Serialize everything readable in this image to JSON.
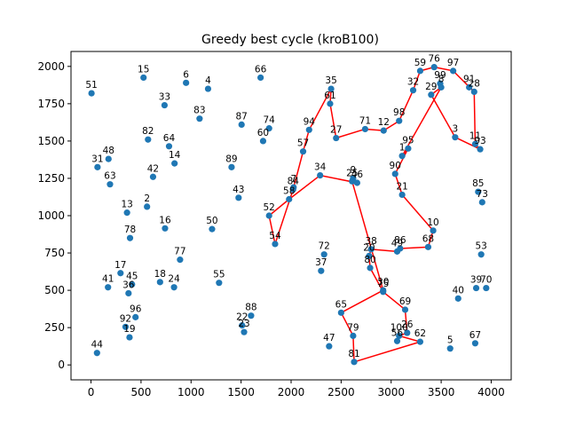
{
  "chart_data": {
    "type": "scatter",
    "title": "Greedy best cycle (kroB100)",
    "xlabel": "",
    "ylabel": "",
    "xlim": [
      -200,
      4200
    ],
    "ylim": [
      -100,
      2100
    ],
    "xticks": [
      0,
      500,
      1000,
      1500,
      2000,
      2500,
      3000,
      3500,
      4000
    ],
    "yticks": [
      0,
      250,
      500,
      750,
      1000,
      1250,
      1500,
      1750,
      2000
    ],
    "point_color": "#1f77b4",
    "cycle_color": "#ff0000",
    "grid": false,
    "points": [
      {
        "label": "51",
        "x": 5,
        "y": 1820
      },
      {
        "label": "15",
        "x": 525,
        "y": 1925
      },
      {
        "label": "6",
        "x": 950,
        "y": 1890
      },
      {
        "label": "4",
        "x": 1170,
        "y": 1850
      },
      {
        "label": "66",
        "x": 1695,
        "y": 1925
      },
      {
        "label": "33",
        "x": 735,
        "y": 1740
      },
      {
        "label": "83",
        "x": 1085,
        "y": 1650
      },
      {
        "label": "82",
        "x": 570,
        "y": 1510
      },
      {
        "label": "64",
        "x": 780,
        "y": 1465
      },
      {
        "label": "87",
        "x": 1505,
        "y": 1610
      },
      {
        "label": "60",
        "x": 1720,
        "y": 1500
      },
      {
        "label": "74",
        "x": 1780,
        "y": 1585
      },
      {
        "label": "48",
        "x": 175,
        "y": 1380
      },
      {
        "label": "31",
        "x": 65,
        "y": 1325
      },
      {
        "label": "14",
        "x": 835,
        "y": 1350
      },
      {
        "label": "42",
        "x": 620,
        "y": 1260
      },
      {
        "label": "89",
        "x": 1405,
        "y": 1325
      },
      {
        "label": "63",
        "x": 190,
        "y": 1210
      },
      {
        "label": "43",
        "x": 1475,
        "y": 1120
      },
      {
        "label": "13",
        "x": 360,
        "y": 1020
      },
      {
        "label": "2",
        "x": 560,
        "y": 1060
      },
      {
        "label": "16",
        "x": 740,
        "y": 915
      },
      {
        "label": "50",
        "x": 1210,
        "y": 910
      },
      {
        "label": "78",
        "x": 390,
        "y": 850
      },
      {
        "label": "77",
        "x": 890,
        "y": 705
      },
      {
        "label": "17",
        "x": 295,
        "y": 615
      },
      {
        "label": "41",
        "x": 170,
        "y": 520
      },
      {
        "label": "45",
        "x": 410,
        "y": 540
      },
      {
        "label": "36",
        "x": 375,
        "y": 480
      },
      {
        "label": "18",
        "x": 690,
        "y": 555
      },
      {
        "label": "24",
        "x": 830,
        "y": 520
      },
      {
        "label": "55",
        "x": 1280,
        "y": 550
      },
      {
        "label": "96",
        "x": 445,
        "y": 320
      },
      {
        "label": "92",
        "x": 345,
        "y": 255
      },
      {
        "label": "19",
        "x": 385,
        "y": 185
      },
      {
        "label": "44",
        "x": 60,
        "y": 80
      },
      {
        "label": "88",
        "x": 1600,
        "y": 330
      },
      {
        "label": "22",
        "x": 1510,
        "y": 265
      },
      {
        "label": "23",
        "x": 1530,
        "y": 220
      },
      {
        "label": "35",
        "x": 2400,
        "y": 1850
      },
      {
        "label": "61",
        "x": 2390,
        "y": 1750
      },
      {
        "label": "94",
        "x": 2180,
        "y": 1575
      },
      {
        "label": "27",
        "x": 2450,
        "y": 1520
      },
      {
        "label": "57",
        "x": 2120,
        "y": 1430
      },
      {
        "label": "71",
        "x": 2740,
        "y": 1580
      },
      {
        "label": "12",
        "x": 2925,
        "y": 1570
      },
      {
        "label": "98",
        "x": 3080,
        "y": 1635
      },
      {
        "label": "59",
        "x": 3290,
        "y": 1970
      },
      {
        "label": "76",
        "x": 3430,
        "y": 1995
      },
      {
        "label": "97",
        "x": 3620,
        "y": 1970
      },
      {
        "label": "32",
        "x": 3220,
        "y": 1840
      },
      {
        "label": "29",
        "x": 3400,
        "y": 1810
      },
      {
        "label": "99",
        "x": 3490,
        "y": 1885
      },
      {
        "label": "8",
        "x": 3500,
        "y": 1860
      },
      {
        "label": "91",
        "x": 3780,
        "y": 1860
      },
      {
        "label": "28",
        "x": 3830,
        "y": 1830
      },
      {
        "label": "3",
        "x": 3640,
        "y": 1525
      },
      {
        "label": "11",
        "x": 3840,
        "y": 1480
      },
      {
        "label": "93",
        "x": 3890,
        "y": 1445
      },
      {
        "label": "95",
        "x": 3170,
        "y": 1450
      },
      {
        "label": "1",
        "x": 3110,
        "y": 1400
      },
      {
        "label": "90",
        "x": 3040,
        "y": 1280
      },
      {
        "label": "21",
        "x": 3110,
        "y": 1140
      },
      {
        "label": "34",
        "x": 2290,
        "y": 1270
      },
      {
        "label": "9",
        "x": 2620,
        "y": 1250
      },
      {
        "label": "25",
        "x": 2610,
        "y": 1230
      },
      {
        "label": "46",
        "x": 2660,
        "y": 1220
      },
      {
        "label": "84",
        "x": 2020,
        "y": 1175
      },
      {
        "label": "7",
        "x": 2025,
        "y": 1190
      },
      {
        "label": "58",
        "x": 1980,
        "y": 1110
      },
      {
        "label": "52",
        "x": 1780,
        "y": 1000
      },
      {
        "label": "54",
        "x": 1840,
        "y": 810
      },
      {
        "label": "85",
        "x": 3870,
        "y": 1160
      },
      {
        "label": "73",
        "x": 3910,
        "y": 1090
      },
      {
        "label": "10",
        "x": 3420,
        "y": 900
      },
      {
        "label": "68",
        "x": 3370,
        "y": 790
      },
      {
        "label": "86",
        "x": 3090,
        "y": 780
      },
      {
        "label": "49",
        "x": 3060,
        "y": 760
      },
      {
        "label": "38",
        "x": 2800,
        "y": 775
      },
      {
        "label": "20",
        "x": 2780,
        "y": 730
      },
      {
        "label": "80",
        "x": 2790,
        "y": 650
      },
      {
        "label": "72",
        "x": 2330,
        "y": 740
      },
      {
        "label": "37",
        "x": 2300,
        "y": 630
      },
      {
        "label": "53",
        "x": 3900,
        "y": 740
      },
      {
        "label": "39",
        "x": 3850,
        "y": 515
      },
      {
        "label": "70",
        "x": 3950,
        "y": 515
      },
      {
        "label": "40",
        "x": 3670,
        "y": 445
      },
      {
        "label": "30",
        "x": 2920,
        "y": 500
      },
      {
        "label": "75",
        "x": 2920,
        "y": 490
      },
      {
        "label": "69",
        "x": 3140,
        "y": 370
      },
      {
        "label": "65",
        "x": 2500,
        "y": 350
      },
      {
        "label": "79",
        "x": 2620,
        "y": 195
      },
      {
        "label": "47",
        "x": 2380,
        "y": 125
      },
      {
        "label": "26",
        "x": 3160,
        "y": 215
      },
      {
        "label": "100",
        "x": 3080,
        "y": 195
      },
      {
        "label": "56",
        "x": 3060,
        "y": 160
      },
      {
        "label": "62",
        "x": 3290,
        "y": 155
      },
      {
        "label": "5",
        "x": 3590,
        "y": 110
      },
      {
        "label": "67",
        "x": 3840,
        "y": 145
      },
      {
        "label": "81",
        "x": 2630,
        "y": 20
      }
    ],
    "cycle": [
      "35",
      "61",
      "27",
      "71",
      "12",
      "98",
      "32",
      "59",
      "76",
      "97",
      "28",
      "11",
      "93",
      "3",
      "29",
      "8",
      "1",
      "95",
      "90",
      "21",
      "10",
      "68",
      "86",
      "49",
      "38",
      "20",
      "80",
      "75",
      "69",
      "26",
      "100",
      "62",
      "81",
      "79",
      "65",
      "30",
      "25",
      "9",
      "46",
      "34",
      "58",
      "52",
      "54",
      "84",
      "57",
      "94",
      "35"
    ]
  }
}
